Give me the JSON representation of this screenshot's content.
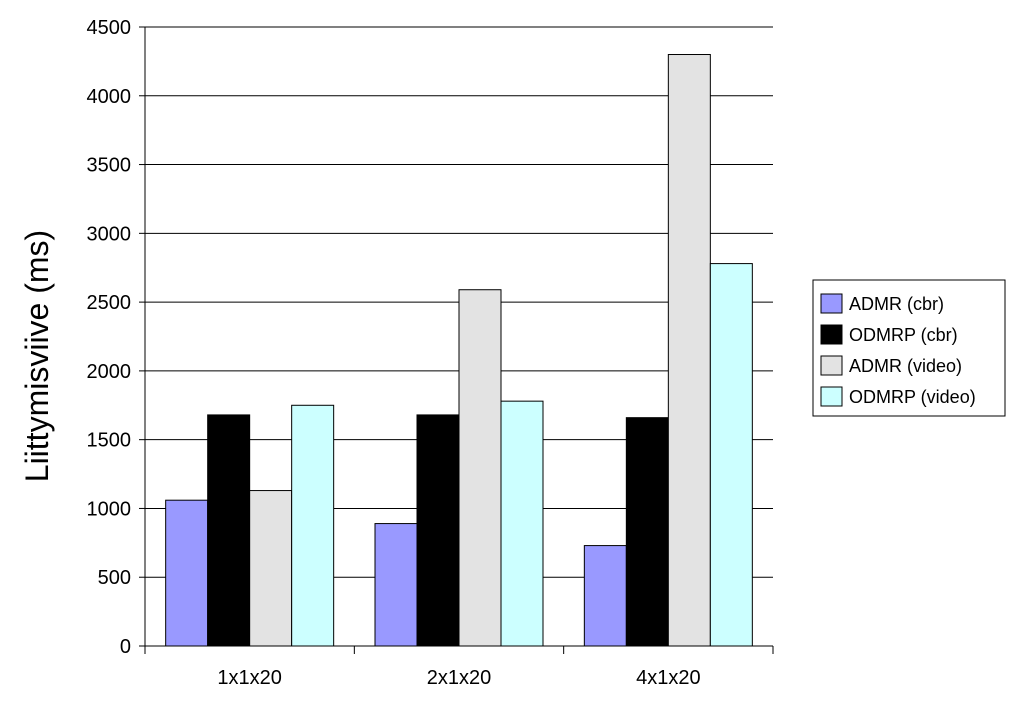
{
  "chart_data": {
    "type": "bar",
    "title": "",
    "xlabel": "",
    "ylabel": "Liittymisviive (ms)",
    "categories": [
      "1x1x20",
      "2x1x20",
      "4x1x20"
    ],
    "ylim": [
      0,
      4500
    ],
    "yticks": [
      0,
      500,
      1000,
      1500,
      2000,
      2500,
      3000,
      3500,
      4000,
      4500
    ],
    "grid": true,
    "legend_position": "right",
    "series": [
      {
        "name": "ADMR (cbr)",
        "color": "#9999ff",
        "values": [
          1060,
          890,
          730
        ]
      },
      {
        "name": "ODMRP (cbr)",
        "color": "#000000",
        "values": [
          1680,
          1680,
          1660
        ]
      },
      {
        "name": "ADMR (video)",
        "color": "#e3e3e3",
        "values": [
          1130,
          2590,
          4300
        ]
      },
      {
        "name": "ODMRP (video)",
        "color": "#ccffff",
        "values": [
          1750,
          1780,
          2780
        ]
      }
    ]
  }
}
